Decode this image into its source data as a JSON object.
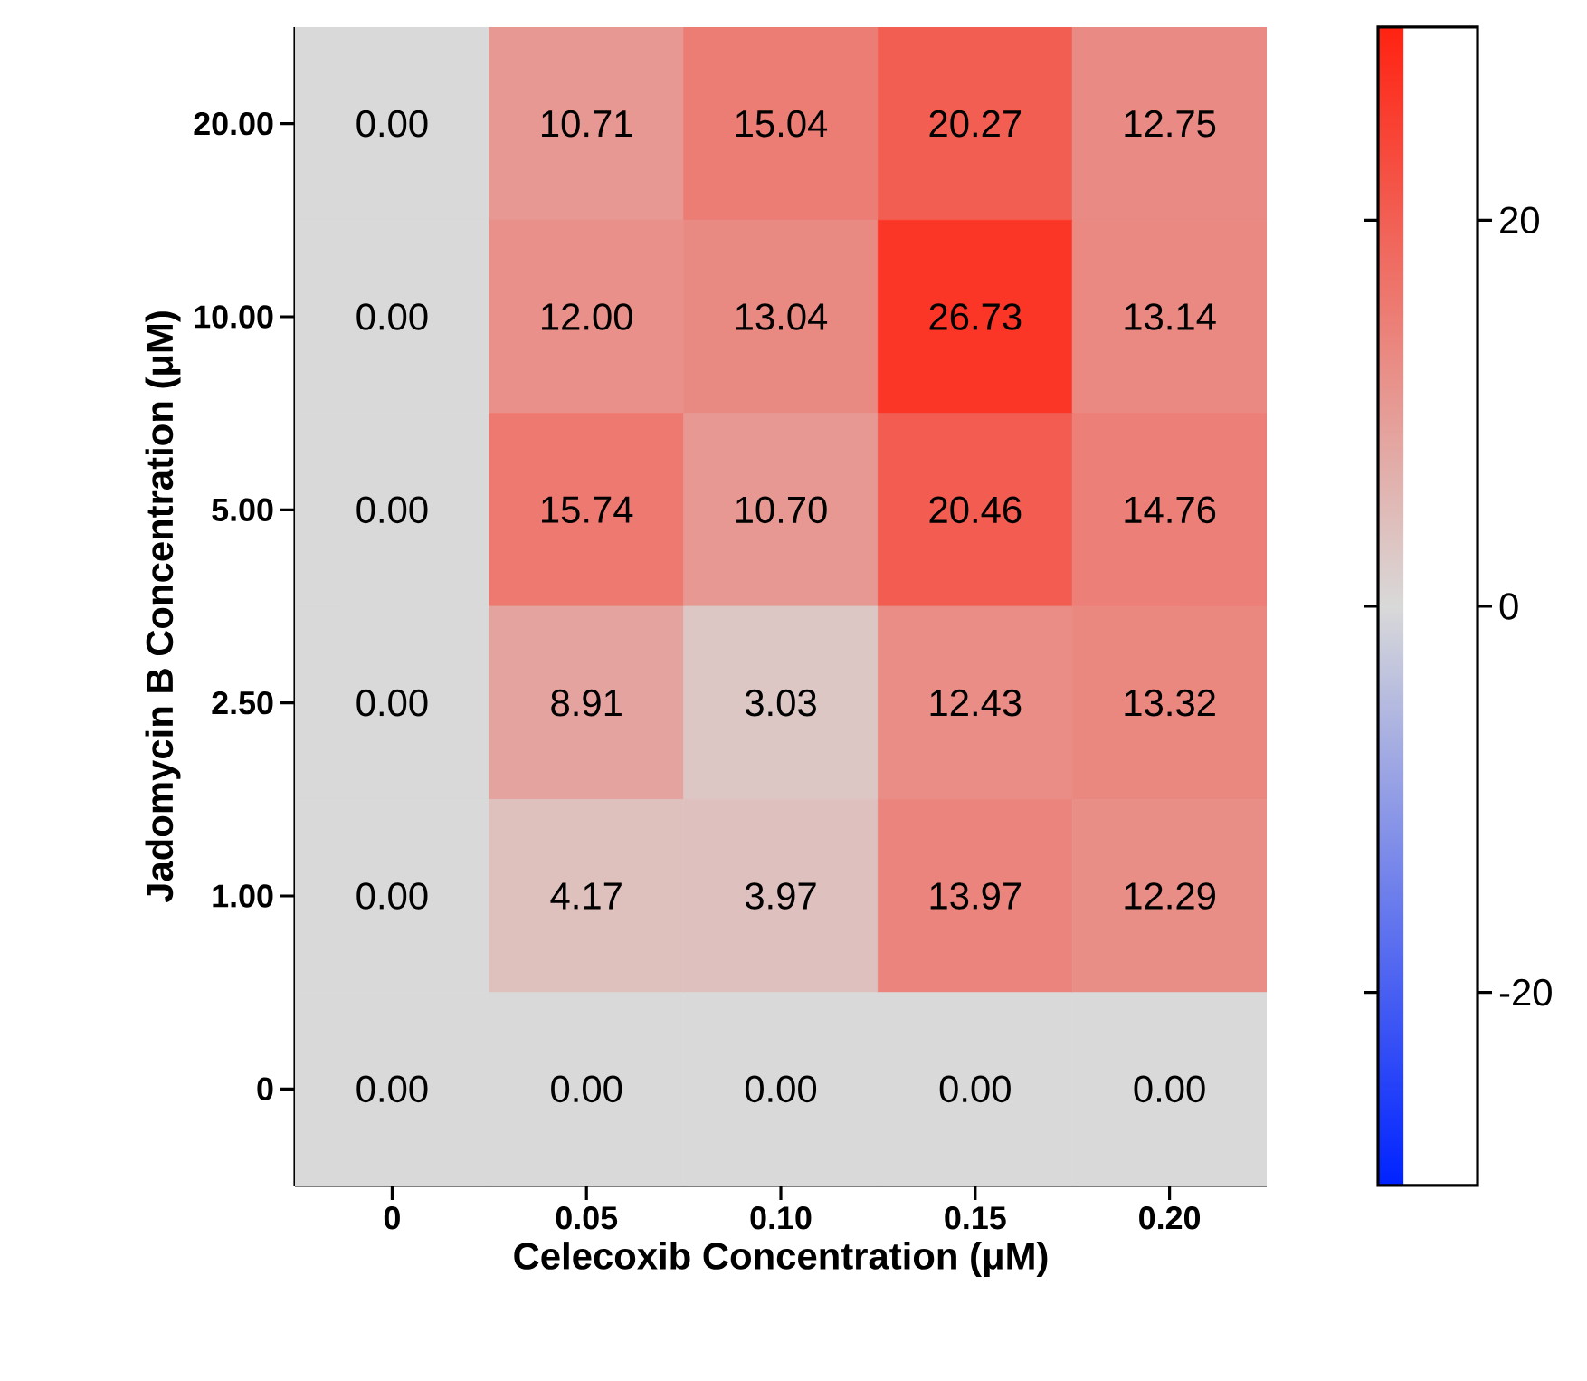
{
  "chart_data": {
    "type": "heatmap",
    "xlabel": "Celecoxib Concentration (μM)",
    "ylabel": "Jadomycin B Concentration  (μM)",
    "categories": [
      "0",
      "0.05",
      "0.10",
      "0.15",
      "0.20"
    ],
    "y_categories": [
      "20.00",
      "10.00",
      "5.00",
      "2.50",
      "1.00",
      "0"
    ],
    "cells": [
      [
        0,
        10.71,
        15.04,
        20.27,
        12.75
      ],
      [
        0,
        12.0,
        13.04,
        26.73,
        13.14
      ],
      [
        0,
        15.74,
        10.7,
        20.46,
        14.76
      ],
      [
        0,
        8.91,
        3.03,
        12.43,
        13.32
      ],
      [
        0,
        4.17,
        3.97,
        13.97,
        12.29
      ],
      [
        0,
        0,
        0,
        0,
        0
      ]
    ],
    "cell_labels": [
      [
        "0.00",
        "10.71",
        "15.04",
        "20.27",
        "12.75"
      ],
      [
        "0.00",
        "12.00",
        "13.04",
        "26.73",
        "13.14"
      ],
      [
        "0.00",
        "15.74",
        "10.70",
        "20.46",
        "14.76"
      ],
      [
        "0.00",
        "8.91",
        "3.03",
        "12.43",
        "13.32"
      ],
      [
        "0.00",
        "4.17",
        "3.97",
        "13.97",
        "12.29"
      ],
      [
        "0.00",
        "0.00",
        "0.00",
        "0.00",
        "0.00"
      ]
    ],
    "clim": [
      -30,
      30
    ],
    "cticks": [
      -20,
      0,
      20
    ]
  }
}
